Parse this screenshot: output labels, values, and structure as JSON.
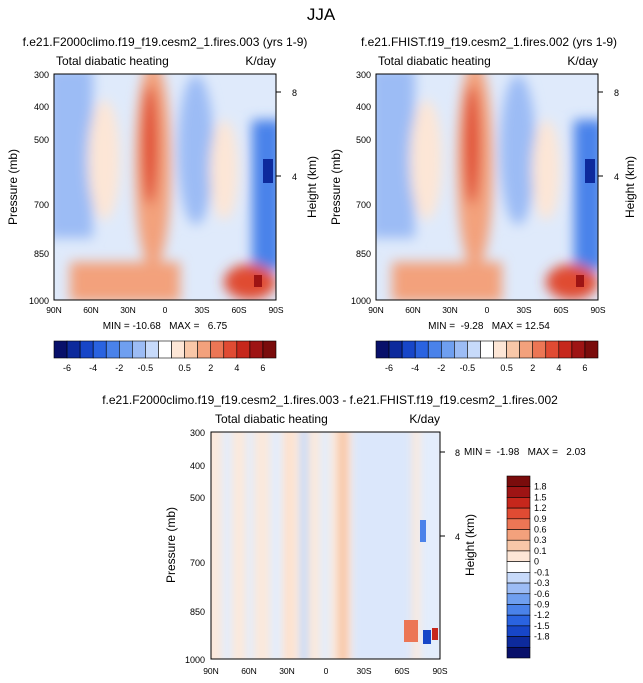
{
  "figure": {
    "suptitle": "JJA",
    "colors": {
      "neg_max": "#08106a",
      "pos_max": "#7a0c0c",
      "zero": "#ffffff"
    }
  },
  "chart_data": [
    {
      "type": "heatmap",
      "title": "f.e21.F2000climo.f19_f19.cesm2_1.fires.003 (yrs 1-9)",
      "left_label": "Total diabatic heating",
      "right_label": "K/day",
      "ylabel": "Pressure (mb)",
      "ylabel_right": "Height (km)",
      "x_ticks": [
        "90N",
        "60N",
        "30N",
        "0",
        "30S",
        "60S",
        "90S"
      ],
      "y_ticks": [
        "300",
        "400",
        "500",
        "700",
        "850",
        "1000"
      ],
      "y_ticks_right": [
        "8",
        "4"
      ],
      "stats": "MIN = -10.68   MAX =   6.75",
      "features": {
        "min": -10.68,
        "max": 6.75
      }
    },
    {
      "type": "heatmap",
      "title": "f.e21.FHIST.f19_f19.cesm2_1.fires.002 (yrs 1-9)",
      "left_label": "Total diabatic heating",
      "right_label": "K/day",
      "ylabel": "Pressure (mb)",
      "ylabel_right": "Height (km)",
      "x_ticks": [
        "90N",
        "60N",
        "30N",
        "0",
        "30S",
        "60S",
        "90S"
      ],
      "y_ticks": [
        "300",
        "400",
        "500",
        "700",
        "850",
        "1000"
      ],
      "y_ticks_right": [
        "8",
        "4"
      ],
      "stats": "MIN =  -9.28   MAX = 12.54",
      "features": {
        "min": -9.28,
        "max": 12.54
      }
    },
    {
      "type": "heatmap",
      "title": "f.e21.F2000climo.f19_f19.cesm2_1.fires.003 - f.e21.FHIST.f19_f19.cesm2_1.fires.002",
      "left_label": "Total diabatic heating",
      "right_label": "K/day",
      "ylabel": "Pressure (mb)",
      "ylabel_right": "Height (km)",
      "x_ticks": [
        "90N",
        "60N",
        "30N",
        "0",
        "30S",
        "60S",
        "90S"
      ],
      "y_ticks": [
        "300",
        "400",
        "500",
        "700",
        "850",
        "1000"
      ],
      "y_ticks_right": [
        "8",
        "4"
      ],
      "stats": "MIN =  -1.98   MAX =   2.03",
      "features": {
        "min": -1.98,
        "max": 2.03
      }
    }
  ],
  "colorbar_top": {
    "labels": [
      "-6",
      "-4",
      "-2",
      "-0.5",
      "0.5",
      "2",
      "4",
      "6"
    ],
    "colors": [
      "#08106a",
      "#0d2a9c",
      "#1746c8",
      "#2a63e0",
      "#4a82ea",
      "#6f9ff0",
      "#9cbcf5",
      "#c7dafa",
      "#ffffff",
      "#fde6d6",
      "#f8c7a8",
      "#f3a17c",
      "#ec7655",
      "#e04b33",
      "#c6271c",
      "#9e1414",
      "#7a0c0c"
    ]
  },
  "colorbar_diff": {
    "labels": [
      "1.8",
      "1.5",
      "1.2",
      "0.9",
      "0.6",
      "0.3",
      "0.1",
      "0",
      "-0.1",
      "-0.3",
      "-0.6",
      "-0.9",
      "-1.2",
      "-1.5",
      "-1.8"
    ],
    "colors": [
      "#7a0c0c",
      "#9e1414",
      "#c6271c",
      "#e04b33",
      "#ec7655",
      "#f3a17c",
      "#f8c7a8",
      "#fde6d6",
      "#ffffff",
      "#c7dafa",
      "#9cbcf5",
      "#6f9ff0",
      "#4a82ea",
      "#2a63e0",
      "#1746c8",
      "#0d2a9c",
      "#08106a"
    ]
  }
}
